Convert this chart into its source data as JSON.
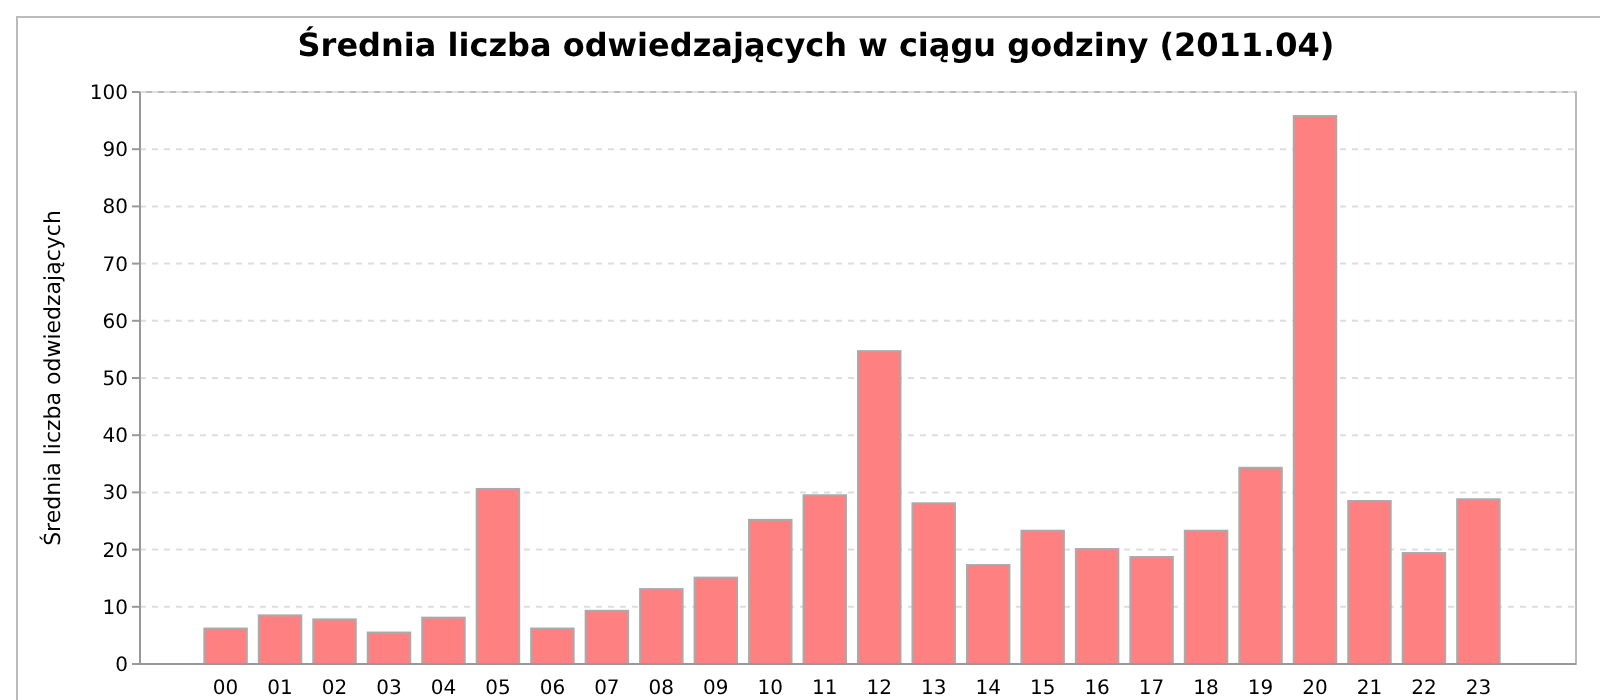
{
  "chart_data": {
    "type": "bar",
    "title": "Średnia liczba odwiedzających w ciągu godziny (2011.04)",
    "ylabel": "Średnia liczba odwiedzających",
    "categories": [
      "00",
      "01",
      "02",
      "03",
      "04",
      "05",
      "06",
      "07",
      "08",
      "09",
      "10",
      "11",
      "12",
      "13",
      "14",
      "15",
      "16",
      "17",
      "18",
      "19",
      "20",
      "21",
      "22",
      "23"
    ],
    "values": [
      6.2,
      8.5,
      7.8,
      5.5,
      8.1,
      30.6,
      6.2,
      9.3,
      13.1,
      15.1,
      25.2,
      29.5,
      54.7,
      28.1,
      17.3,
      23.3,
      20.1,
      18.7,
      23.3,
      34.3,
      95.8,
      28.5,
      19.4,
      28.8
    ],
    "color": "#ff8080",
    "ylim": [
      0,
      100
    ],
    "yticks": [
      0,
      10,
      20,
      30,
      40,
      50,
      60,
      70,
      80,
      90,
      100
    ],
    "grid": true
  }
}
